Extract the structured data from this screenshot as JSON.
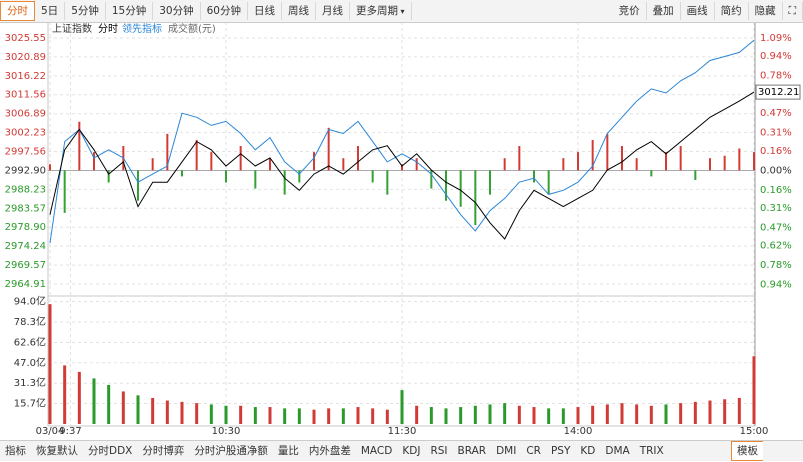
{
  "toolbar": {
    "tabs": [
      "分时",
      "5日",
      "5分钟",
      "15分钟",
      "30分钟",
      "60分钟",
      "日线",
      "周线",
      "月线",
      "更多周期"
    ],
    "right": [
      "竞价",
      "叠加",
      "画线",
      "简约",
      "隐藏"
    ]
  },
  "bottom_tabs": [
    "指标",
    "恢复默认",
    "分时DDX",
    "分时博弈",
    "分时沪股通净额",
    "量比",
    "内外盘差",
    "MACD",
    "KDJ",
    "RSI",
    "BRAR",
    "DMI",
    "CR",
    "PSY",
    "KD",
    "DMA",
    "TRIX",
    "模板"
  ],
  "chart_data": {
    "type": "line",
    "title": "上证指数",
    "x": [
      0,
      5,
      10,
      15,
      20,
      25,
      30,
      35,
      40,
      45,
      50,
      55,
      60,
      65,
      70,
      75,
      80,
      85,
      90,
      95,
      100,
      105,
      110,
      115,
      120,
      125,
      130,
      135,
      140,
      145,
      150,
      155,
      160,
      165,
      170,
      175,
      180,
      185,
      190,
      195,
      200,
      205,
      210,
      215,
      220,
      225,
      230,
      235,
      240
    ],
    "xlim": [
      0,
      240
    ],
    "xticks": [
      {
        "value": 0,
        "label": "03/04"
      },
      {
        "value": 7,
        "label": "9:37"
      },
      {
        "value": 60,
        "label": "10:30"
      },
      {
        "value": 120,
        "label": "11:30"
      },
      {
        "value": 180,
        "label": "14:00"
      },
      {
        "value": 240,
        "label": "15:00"
      }
    ],
    "ylim": [
      2962.2,
      3027.52
    ],
    "yticks": [
      3025.55,
      3020.89,
      3016.22,
      3011.56,
      3006.89,
      3002.23,
      2997.56,
      {
        "value": 2992.9,
        "label": "2992.90"
      },
      2988.23,
      2983.57,
      {
        "value": 2978.9,
        "label": "2978.90"
      },
      2974.24,
      2969.57,
      2964.91
    ],
    "y2lim": [
      -1.026,
      1.155
    ],
    "y2ticks": [
      {
        "value": 1.09,
        "label": "1.09%"
      },
      {
        "value": 0.94,
        "label": "0.94%"
      },
      {
        "value": 0.78,
        "label": "0.78%"
      },
      {
        "value": 0.62,
        "label": "0.62%"
      },
      {
        "value": 0.47,
        "label": "0.47%"
      },
      {
        "value": 0.31,
        "label": "0.31%"
      },
      {
        "value": 0.16,
        "label": "0.16%"
      },
      {
        "value": 0,
        "label": "0.00%"
      },
      {
        "value": -0.16,
        "label": "0.16%"
      },
      {
        "value": -0.31,
        "label": "0.31%"
      },
      {
        "value": -0.47,
        "label": "0.47%"
      },
      {
        "value": -0.62,
        "label": "0.62%"
      },
      {
        "value": -0.78,
        "label": "0.78%"
      },
      {
        "value": -0.94,
        "label": "0.94%"
      }
    ],
    "grid": true,
    "series": [
      {
        "name": "分时",
        "color": "#000000",
        "values": [
          2982,
          2998,
          3003,
          2998,
          2992,
          2995,
          2984,
          2990,
          2990,
          2995,
          3000,
          2998,
          2994,
          2997,
          2994,
          2996,
          2991,
          2988,
          2992,
          2994,
          2992,
          2995,
          2998,
          2999,
          2994,
          2997,
          2993,
          2990,
          2988,
          2985,
          2980,
          2976,
          2983,
          2988,
          2986,
          2984,
          2986,
          2988,
          2993,
          2995,
          2998,
          3000,
          2997,
          3000,
          3003,
          3006,
          3008,
          3010,
          3012.21
        ]
      },
      {
        "name": "领先指标",
        "color": "#2a86d8",
        "values": [
          2975,
          3000,
          3003,
          2996,
          2998,
          2996,
          2990,
          2992,
          2994,
          3007,
          3006,
          3004,
          3005,
          3002,
          2998,
          3001,
          2995,
          2992,
          2996,
          3003,
          3002,
          3005,
          3000,
          2995,
          2997,
          2995,
          2992,
          2987,
          2982,
          2978,
          2983,
          2986,
          2990,
          2991,
          2987,
          2988,
          2990,
          2994,
          3002,
          3006,
          3010,
          3013,
          3012,
          3015,
          3017,
          3020,
          3021,
          3022,
          3025
        ]
      }
    ],
    "strength": {
      "axis": "y2",
      "up_color": "#d23a36",
      "down_color": "#35a035",
      "values": [
        0.05,
        -0.35,
        0.4,
        0.15,
        -0.1,
        0.2,
        -0.25,
        0.1,
        0.3,
        -0.05,
        0.25,
        0.15,
        -0.1,
        0.2,
        -0.15,
        0.1,
        -0.2,
        -0.1,
        0.15,
        0.35,
        0.1,
        0.2,
        -0.1,
        -0.2,
        0.05,
        0.1,
        -0.15,
        -0.25,
        -0.3,
        -0.45,
        -0.2,
        0.1,
        0.2,
        -0.1,
        -0.2,
        0.1,
        0.15,
        0.25,
        0.3,
        0.2,
        0.1,
        -0.05,
        0.15,
        0.2,
        -0.08,
        0.1,
        0.12,
        0.18,
        0.15
      ]
    },
    "volume": {
      "name": "成交额(元)",
      "ylim": [
        0,
        97.5
      ],
      "yticks": [
        {
          "value": 94,
          "label": "94.0亿"
        },
        {
          "value": 78.3,
          "label": "78.3亿"
        },
        {
          "value": 62.6,
          "label": "62.6亿"
        },
        {
          "value": 47,
          "label": "47.0亿"
        },
        {
          "value": 31.3,
          "label": "31.3亿"
        },
        {
          "value": 15.7,
          "label": "15.7亿"
        }
      ],
      "values": [
        92,
        45,
        40,
        35,
        30,
        25,
        22,
        20,
        18,
        17,
        16,
        15,
        14,
        14,
        13,
        13,
        12,
        12,
        11,
        12,
        12,
        13,
        12,
        11,
        26,
        14,
        13,
        12,
        13,
        14,
        15,
        16,
        14,
        13,
        12,
        12,
        13,
        14,
        15,
        16,
        15,
        14,
        15,
        16,
        17,
        18,
        19,
        20,
        52
      ]
    }
  }
}
